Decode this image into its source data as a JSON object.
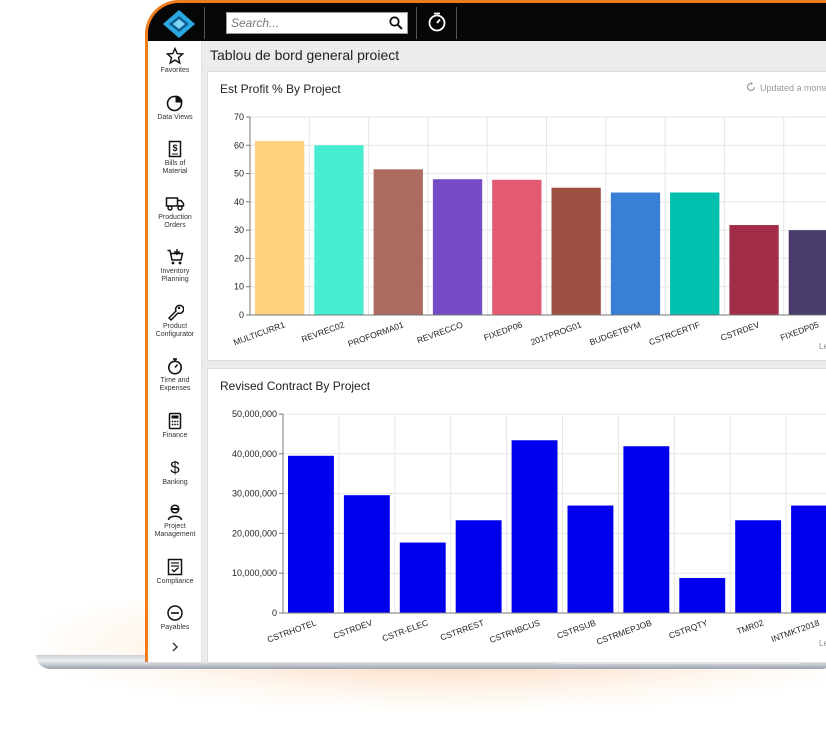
{
  "search": {
    "placeholder": "Search..."
  },
  "sidebar": {
    "items": [
      {
        "label": "Favorites",
        "icon": "star-icon"
      },
      {
        "label": "Data Views",
        "icon": "pie-chart-icon"
      },
      {
        "label": "Bills of\nMaterial",
        "icon": "bill-icon"
      },
      {
        "label": "Production\nOrders",
        "icon": "truck-icon"
      },
      {
        "label": "Inventory\nPlanning",
        "icon": "cart-icon"
      },
      {
        "label": "Product\nConfigurator",
        "icon": "wrench-icon"
      },
      {
        "label": "Time and\nExpenses",
        "icon": "stopwatch-icon"
      },
      {
        "label": "Finance",
        "icon": "calculator-icon"
      },
      {
        "label": "Banking",
        "icon": "dollar-icon"
      },
      {
        "label": "Project\nManagement",
        "icon": "person-icon"
      },
      {
        "label": "Compliance",
        "icon": "checklist-icon"
      },
      {
        "label": "Payables",
        "icon": "minus-circle-icon"
      }
    ],
    "expand_icon": "chevron-right-icon"
  },
  "page": {
    "title": "Tablou de bord general proiect"
  },
  "cards": {
    "profit": {
      "title": "Est Profit % By Project",
      "updated": "Updated a mome",
      "legend_hint": "Le"
    },
    "contract": {
      "title": "Revised Contract By Project",
      "legend_hint": "Le"
    }
  },
  "colors": {
    "accent": "#f07c1e",
    "topbar": "#060606",
    "contract_bar": "#0000ee"
  },
  "chart_data": [
    {
      "type": "bar",
      "title": "Est Profit % By Project",
      "categories": [
        "MULTICURR1",
        "REVREC02",
        "PROFORMA01",
        "REVRECCO",
        "FIXEDP06",
        "2017PROG01",
        "BUDGETBYM",
        "CSTRCERTIF",
        "CSTRDEV",
        "FIXEDP05"
      ],
      "values": [
        61.5,
        60,
        51.5,
        48,
        47.8,
        45,
        43.3,
        43.3,
        31.8,
        30
      ],
      "colors": [
        "#ffd27f",
        "#46edd0",
        "#ad6a5f",
        "#764bc8",
        "#e45a72",
        "#9d4f42",
        "#3a7fd6",
        "#00bfae",
        "#a12d49",
        "#4a3b6d"
      ],
      "yticks": [
        "0",
        "10",
        "20",
        "30",
        "40",
        "50",
        "60",
        "70"
      ],
      "ylim": [
        0,
        70
      ],
      "grid": true
    },
    {
      "type": "bar",
      "title": "Revised Contract By Project",
      "categories": [
        "CSTRHOTEL",
        "CSTRDEV",
        "CSTR-ELEC",
        "CSTRREST",
        "CSTRHBCUS",
        "CSTRSUB",
        "CSTRMEPJOB",
        "CSTRQTY",
        "TMR02",
        "INTMKT2018"
      ],
      "values": [
        39500000,
        29600000,
        17700000,
        23300000,
        43400000,
        27000000,
        41900000,
        8800000,
        23300000,
        27000000
      ],
      "yticks": [
        "0",
        "10,000,000",
        "20,000,000",
        "30,000,000",
        "40,000,000",
        "50,000,000"
      ],
      "ylim": [
        0,
        50000000
      ],
      "grid": true
    }
  ]
}
